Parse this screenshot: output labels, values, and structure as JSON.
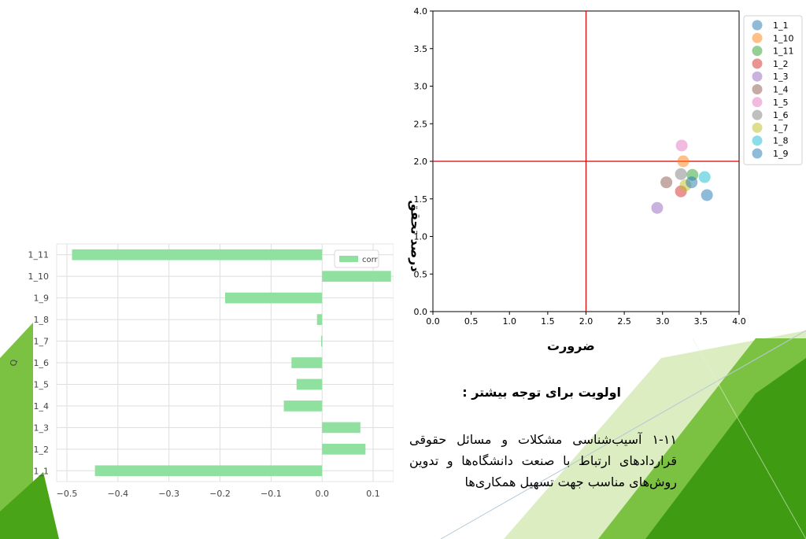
{
  "chart_data": [
    {
      "type": "scatter",
      "xlabel": "ضرورت",
      "ylabel": "درصد تحقق",
      "xlim": [
        0,
        4.0
      ],
      "ylim": [
        0,
        4.0
      ],
      "xticks": [
        "0.0",
        "0.5",
        "1.0",
        "1.5",
        "2.0",
        "2.5",
        "3.0",
        "3.5",
        "4.0"
      ],
      "yticks": [
        "0.0",
        "0.5",
        "1.0",
        "1.5",
        "2.0",
        "2.5",
        "3.0",
        "3.5",
        "4.0"
      ],
      "reference_lines": {
        "x": 2.0,
        "y": 2.0,
        "color": "#dd0000"
      },
      "legend_position": "outside-right",
      "series": [
        {
          "name": "1_1",
          "color": "#1f77b4",
          "x": 3.58,
          "y": 1.55
        },
        {
          "name": "1_10",
          "color": "#ff7f0e",
          "x": 3.27,
          "y": 2.0
        },
        {
          "name": "1_11",
          "color": "#2ca02c",
          "x": 3.39,
          "y": 1.82
        },
        {
          "name": "1_2",
          "color": "#d62728",
          "x": 3.24,
          "y": 1.6
        },
        {
          "name": "1_3",
          "color": "#9467bd",
          "x": 2.93,
          "y": 1.38
        },
        {
          "name": "1_4",
          "color": "#8c564b",
          "x": 3.05,
          "y": 1.72
        },
        {
          "name": "1_5",
          "color": "#e377c2",
          "x": 3.25,
          "y": 2.21
        },
        {
          "name": "1_6",
          "color": "#7f7f7f",
          "x": 3.24,
          "y": 1.83
        },
        {
          "name": "1_7",
          "color": "#bcbd22",
          "x": 3.3,
          "y": 1.68
        },
        {
          "name": "1_8",
          "color": "#17becf",
          "x": 3.55,
          "y": 1.79
        },
        {
          "name": "1_9",
          "color": "#1f77b4",
          "x": 3.38,
          "y": 1.72
        }
      ]
    },
    {
      "type": "bar",
      "orientation": "horizontal",
      "ylabel": "Q",
      "categories": [
        "1_11",
        "1_10",
        "1_9",
        "1_8",
        "1_7",
        "1_6",
        "1_5",
        "1_4",
        "1_3",
        "1_2",
        "1_1"
      ],
      "values": [
        -0.49,
        0.135,
        -0.19,
        -0.01,
        -0.002,
        -0.06,
        -0.05,
        -0.075,
        0.075,
        0.085,
        -0.445
      ],
      "xlim": [
        -0.52,
        0.14
      ],
      "xticks": [
        -0.5,
        -0.4,
        -0.3,
        -0.2,
        -0.1,
        0.0,
        0.1
      ],
      "xtick_labels": [
        "−0.5",
        "−0.4",
        "−0.3",
        "−0.2",
        "−0.1",
        "0.0",
        "0.1"
      ],
      "legend": [
        "corr"
      ],
      "legend_position": "top-right",
      "bar_color": "#90e0a0",
      "grid": true
    }
  ],
  "text": {
    "heading": "اولویت برای توجه بیشتر :",
    "body": "۱-۱۱ آسیب‌شناسی مشکلات و مسائل حقوقی قراردادهای ارتباط با صنعت دانشگاه‌ها و تدوین روش‌های مناسب جهت تسهیل همکاری‌ها"
  },
  "theme": {
    "accent_dark": "#3e9b12",
    "accent_mid": "#7cc242",
    "accent_light": "#c7e3a0"
  }
}
